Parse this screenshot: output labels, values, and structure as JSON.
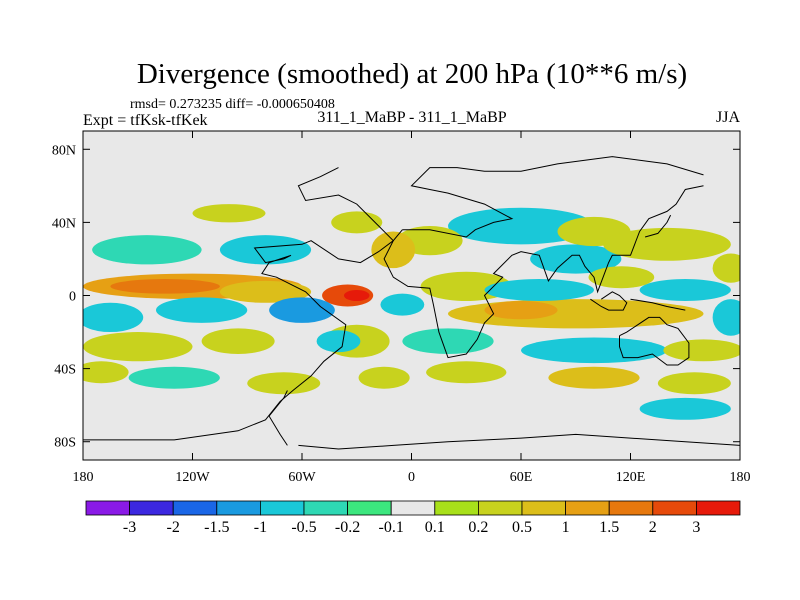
{
  "chart_data": {
    "type": "heatmap",
    "title": "Divergence (smoothed) at 200 hPa (10**6 m/s)",
    "stats_line": "rmsd= 0.273235  diff= -0.000650408",
    "left_subtitle": "Expt = tfKsk-tfKek",
    "center_subtitle": "311_1_MaBP - 311_1_MaBP",
    "right_subtitle": "JJA",
    "x_range": [
      -180,
      180
    ],
    "y_range": [
      -90,
      90
    ],
    "x_ticks": [
      {
        "value": -180,
        "label": "180"
      },
      {
        "value": -120,
        "label": "120W"
      },
      {
        "value": -60,
        "label": "60W"
      },
      {
        "value": 0,
        "label": "0"
      },
      {
        "value": 60,
        "label": "60E"
      },
      {
        "value": 120,
        "label": "120E"
      },
      {
        "value": 180,
        "label": "180"
      }
    ],
    "y_ticks": [
      {
        "value": 80,
        "label": "80N"
      },
      {
        "value": 40,
        "label": "40N"
      },
      {
        "value": 0,
        "label": "0"
      },
      {
        "value": -40,
        "label": "40S"
      },
      {
        "value": -80,
        "label": "80S"
      }
    ],
    "colorbar": {
      "colors": [
        "#8a1ae6",
        "#3c28e0",
        "#1a66e6",
        "#1a9ae0",
        "#1ac8d8",
        "#2ed8b4",
        "#3ce67e",
        "#e8e8e8",
        "#a8e01a",
        "#c8d21e",
        "#dcbe1a",
        "#e6a014",
        "#e6780e",
        "#e64a0a",
        "#e61a0a"
      ],
      "labels": [
        "-3",
        "-2",
        "-1.5",
        "-1",
        "-0.5",
        "-0.2",
        "-0.1",
        "0.1",
        "0.2",
        "0.5",
        "1",
        "1.5",
        "2",
        "3"
      ]
    },
    "blobs": [
      {
        "lon": -120,
        "lat": 5,
        "rlon": 60,
        "rlat": 7,
        "level": 11
      },
      {
        "lon": -135,
        "lat": 5,
        "rlon": 30,
        "rlat": 4,
        "level": 12
      },
      {
        "lon": -35,
        "lat": 0,
        "rlon": 14,
        "rlat": 6,
        "level": 13
      },
      {
        "lon": -30,
        "lat": 0,
        "rlon": 7,
        "rlat": 3,
        "level": 14
      },
      {
        "lon": -80,
        "lat": 2,
        "rlon": 25,
        "rlat": 6,
        "level": 10
      },
      {
        "lon": -165,
        "lat": -12,
        "rlon": 18,
        "rlat": 8,
        "level": 4
      },
      {
        "lon": -115,
        "lat": -8,
        "rlon": 25,
        "rlat": 7,
        "level": 4
      },
      {
        "lon": -60,
        "lat": -8,
        "rlon": 18,
        "rlat": 7,
        "level": 3
      },
      {
        "lon": -145,
        "lat": 25,
        "rlon": 30,
        "rlat": 8,
        "level": 5
      },
      {
        "lon": -80,
        "lat": 25,
        "rlon": 25,
        "rlat": 8,
        "level": 4
      },
      {
        "lon": -150,
        "lat": -28,
        "rlon": 30,
        "rlat": 8,
        "level": 9
      },
      {
        "lon": -95,
        "lat": -25,
        "rlon": 20,
        "rlat": 7,
        "level": 9
      },
      {
        "lon": -130,
        "lat": -45,
        "rlon": 25,
        "rlat": 6,
        "level": 5
      },
      {
        "lon": -170,
        "lat": -42,
        "rlon": 15,
        "rlat": 6,
        "level": 9
      },
      {
        "lon": -70,
        "lat": -48,
        "rlon": 20,
        "rlat": 6,
        "level": 9
      },
      {
        "lon": 60,
        "lat": 38,
        "rlon": 40,
        "rlat": 10,
        "level": 4
      },
      {
        "lon": 90,
        "lat": 20,
        "rlon": 25,
        "rlat": 8,
        "level": 4
      },
      {
        "lon": 100,
        "lat": 35,
        "rlon": 20,
        "rlat": 8,
        "level": 9
      },
      {
        "lon": 140,
        "lat": 28,
        "rlon": 35,
        "rlat": 9,
        "level": 9
      },
      {
        "lon": 10,
        "lat": 30,
        "rlon": 18,
        "rlat": 8,
        "level": 9
      },
      {
        "lon": -10,
        "lat": 25,
        "rlon": 12,
        "rlat": 10,
        "level": 10
      },
      {
        "lon": 30,
        "lat": 5,
        "rlon": 25,
        "rlat": 8,
        "level": 9
      },
      {
        "lon": 90,
        "lat": -10,
        "rlon": 70,
        "rlat": 8,
        "level": 10
      },
      {
        "lon": 60,
        "lat": -8,
        "rlon": 20,
        "rlat": 5,
        "level": 11
      },
      {
        "lon": 70,
        "lat": 3,
        "rlon": 30,
        "rlat": 6,
        "level": 4
      },
      {
        "lon": 150,
        "lat": 3,
        "rlon": 25,
        "rlat": 6,
        "level": 4
      },
      {
        "lon": 20,
        "lat": -25,
        "rlon": 25,
        "rlat": 7,
        "level": 5
      },
      {
        "lon": 100,
        "lat": -30,
        "rlon": 40,
        "rlat": 7,
        "level": 4
      },
      {
        "lon": 160,
        "lat": -30,
        "rlon": 22,
        "rlat": 6,
        "level": 9
      },
      {
        "lon": 30,
        "lat": -42,
        "rlon": 22,
        "rlat": 6,
        "level": 9
      },
      {
        "lon": 100,
        "lat": -45,
        "rlon": 25,
        "rlat": 6,
        "level": 10
      },
      {
        "lon": 155,
        "lat": -48,
        "rlon": 20,
        "rlat": 6,
        "level": 9
      },
      {
        "lon": 150,
        "lat": -62,
        "rlon": 25,
        "rlat": 6,
        "level": 4
      },
      {
        "lon": -30,
        "lat": -25,
        "rlon": 18,
        "rlat": 9,
        "level": 9
      },
      {
        "lon": -15,
        "lat": -45,
        "rlon": 14,
        "rlat": 6,
        "level": 9
      },
      {
        "lon": -40,
        "lat": -25,
        "rlon": 12,
        "rlat": 6,
        "level": 4
      },
      {
        "lon": 115,
        "lat": 10,
        "rlon": 18,
        "rlat": 6,
        "level": 9
      },
      {
        "lon": -100,
        "lat": 45,
        "rlon": 20,
        "rlat": 5,
        "level": 9
      },
      {
        "lon": -30,
        "lat": 40,
        "rlon": 14,
        "rlat": 6,
        "level": 9
      },
      {
        "lon": 175,
        "lat": 15,
        "rlon": 10,
        "rlat": 8,
        "level": 9
      },
      {
        "lon": 175,
        "lat": -12,
        "rlon": 10,
        "rlat": 10,
        "level": 4
      },
      {
        "lon": -5,
        "lat": -5,
        "rlon": 12,
        "rlat": 6,
        "level": 4
      }
    ],
    "outlines": [
      [
        [
          -180,
          -79
        ],
        [
          -130,
          -79
        ],
        [
          -95,
          -74
        ],
        [
          -80,
          -68
        ],
        [
          -72,
          -58
        ],
        [
          -65,
          -52
        ],
        [
          -55,
          -44
        ],
        [
          -48,
          -36
        ],
        [
          -38,
          -28
        ],
        [
          -36,
          -16
        ],
        [
          -50,
          -6
        ],
        [
          -58,
          2
        ],
        [
          -74,
          10
        ],
        [
          -82,
          12
        ],
        [
          -78,
          18
        ],
        [
          -66,
          22
        ],
        [
          -70,
          20
        ],
        [
          -80,
          18
        ],
        [
          -86,
          26
        ],
        [
          -60,
          28
        ],
        [
          -55,
          30
        ],
        [
          -40,
          20
        ],
        [
          -28,
          18
        ],
        [
          -18,
          24
        ],
        [
          -10,
          30
        ],
        [
          -18,
          38
        ],
        [
          -30,
          50
        ],
        [
          -40,
          55
        ],
        [
          -58,
          52
        ],
        [
          -62,
          60
        ],
        [
          -50,
          65
        ],
        [
          -40,
          70
        ]
      ],
      [
        [
          -62,
          -82
        ],
        [
          -40,
          -84
        ],
        [
          -10,
          -82
        ],
        [
          20,
          -80
        ],
        [
          60,
          -78
        ],
        [
          90,
          -76
        ],
        [
          120,
          -78
        ],
        [
          150,
          -80
        ],
        [
          180,
          -82
        ]
      ],
      [
        [
          -68,
          -82
        ],
        [
          -72,
          -76
        ],
        [
          -78,
          -66
        ],
        [
          -70,
          -56
        ],
        [
          -68,
          -52
        ]
      ],
      [
        [
          -5,
          36
        ],
        [
          10,
          36
        ],
        [
          30,
          32
        ],
        [
          35,
          36
        ],
        [
          45,
          40
        ],
        [
          55,
          42
        ],
        [
          40,
          50
        ],
        [
          20,
          56
        ],
        [
          10,
          58
        ],
        [
          0,
          60
        ],
        [
          10,
          70
        ],
        [
          25,
          70
        ],
        [
          40,
          68
        ],
        [
          60,
          68
        ],
        [
          80,
          72
        ],
        [
          110,
          76
        ],
        [
          140,
          72
        ],
        [
          160,
          66
        ]
      ],
      [
        [
          -5,
          36
        ],
        [
          -10,
          30
        ],
        [
          -15,
          20
        ],
        [
          -10,
          10
        ],
        [
          -2,
          5
        ],
        [
          10,
          4
        ],
        [
          12,
          -5
        ],
        [
          15,
          -20
        ],
        [
          20,
          -34
        ],
        [
          30,
          -32
        ],
        [
          36,
          -24
        ],
        [
          40,
          -15
        ],
        [
          45,
          -10
        ],
        [
          40,
          0
        ],
        [
          50,
          10
        ],
        [
          45,
          12
        ],
        [
          55,
          22
        ],
        [
          60,
          24
        ],
        [
          70,
          22
        ],
        [
          75,
          8
        ],
        [
          80,
          15
        ],
        [
          88,
          22
        ],
        [
          92,
          22
        ],
        [
          95,
          16
        ],
        [
          100,
          10
        ],
        [
          102,
          2
        ],
        [
          105,
          10
        ],
        [
          108,
          18
        ],
        [
          110,
          22
        ],
        [
          120,
          22
        ],
        [
          125,
          35
        ],
        [
          130,
          42
        ],
        [
          140,
          46
        ],
        [
          145,
          50
        ],
        [
          150,
          58
        ],
        [
          160,
          60
        ]
      ],
      [
        [
          98,
          -2
        ],
        [
          104,
          -6
        ],
        [
          108,
          -8
        ],
        [
          116,
          -8
        ],
        [
          118,
          -4
        ],
        [
          114,
          0
        ],
        [
          110,
          2
        ],
        [
          104,
          -2
        ]
      ],
      [
        [
          114,
          -22
        ],
        [
          118,
          -20
        ],
        [
          130,
          -12
        ],
        [
          136,
          -12
        ],
        [
          140,
          -16
        ],
        [
          146,
          -18
        ],
        [
          152,
          -26
        ],
        [
          152,
          -34
        ],
        [
          146,
          -38
        ],
        [
          140,
          -38
        ],
        [
          132,
          -32
        ],
        [
          124,
          -34
        ],
        [
          116,
          -34
        ],
        [
          114,
          -28
        ],
        [
          114,
          -22
        ]
      ],
      [
        [
          128,
          32
        ],
        [
          135,
          34
        ],
        [
          140,
          40
        ],
        [
          142,
          44
        ]
      ],
      [
        [
          120,
          -2
        ],
        [
          132,
          -4
        ],
        [
          140,
          -6
        ],
        [
          150,
          -8
        ]
      ]
    ]
  }
}
